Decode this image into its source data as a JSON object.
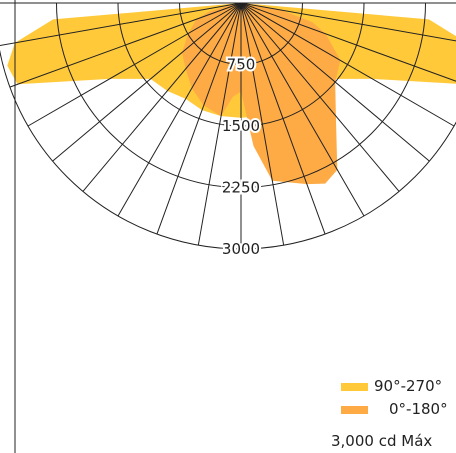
{
  "chart_data": {
    "type": "polar",
    "rings": [
      750,
      1500,
      2250,
      3000
    ],
    "r_max": 3000,
    "angle_step_deg": 10,
    "series": [
      {
        "name": "90°-270°",
        "color": "#FFC93A",
        "angles": [
          0,
          10,
          20,
          30,
          40,
          50,
          60,
          70,
          75,
          80,
          85,
          90
        ],
        "values": [
          1400,
          1400,
          1390,
          1350,
          1400,
          1440,
          1850,
          2900,
          2950,
          2800,
          2300,
          0
        ]
      },
      {
        "name": "0°-180°",
        "color": "#FFAB45",
        "angles": [
          -90,
          -80,
          -75,
          -70,
          -60,
          -50,
          -40,
          -30,
          -20,
          -10,
          -5,
          0,
          5,
          10,
          20,
          25,
          30,
          40,
          50,
          60,
          70,
          75,
          80,
          90
        ],
        "values": [
          0,
          120,
          400,
          580,
          740,
          940,
          1050,
          1200,
          1330,
          1400,
          1150,
          1080,
          1750,
          2200,
          2350,
          2430,
          2350,
          1800,
          1500,
          1400,
          1100,
          900,
          500,
          0
        ]
      }
    ],
    "legend": [
      {
        "label": "90°-270°",
        "color": "#FFC93A"
      },
      {
        "label": "0°-180°",
        "color": "#FFAB45"
      }
    ],
    "footer": "3,000 cd Máx"
  }
}
